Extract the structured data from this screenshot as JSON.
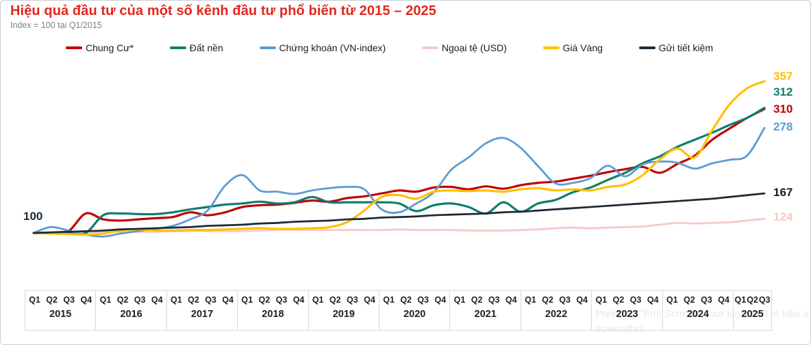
{
  "header": {
    "title": "Hiệu quả đầu tư của một số kênh đầu tư phổ biến từ 2015 – 2025",
    "subtitle": "Index = 100 tại Q1/2015",
    "title_color": "#e2261c"
  },
  "watermark": {
    "line1": "Press the \"Prnt Scrn\" on your keyboard to take a",
    "line2": "screenshot"
  },
  "chart_data": {
    "type": "line",
    "title": "Hiệu quả đầu tư của một số kênh đầu tư phổ biến từ 2015 – 2025",
    "subtitle": "Index = 100 tại Q1/2015",
    "baseline_label": "100",
    "baseline_value": 100,
    "ylim": [
      85,
      370
    ],
    "grid": false,
    "legend_position": "top",
    "x_axis": {
      "years": [
        {
          "label": "2015",
          "quarters": [
            "Q1",
            "Q2",
            "Q3",
            "Q4"
          ]
        },
        {
          "label": "2016",
          "quarters": [
            "Q1",
            "Q2",
            "Q3",
            "Q4"
          ]
        },
        {
          "label": "2017",
          "quarters": [
            "Q1",
            "Q2",
            "Q3",
            "Q4"
          ]
        },
        {
          "label": "2018",
          "quarters": [
            "Q1",
            "Q2",
            "Q3",
            "Q4"
          ]
        },
        {
          "label": "2019",
          "quarters": [
            "Q1",
            "Q2",
            "Q3",
            "Q4"
          ]
        },
        {
          "label": "2020",
          "quarters": [
            "Q1",
            "Q2",
            "Q3",
            "Q4"
          ]
        },
        {
          "label": "2021",
          "quarters": [
            "Q1",
            "Q2",
            "Q3",
            "Q4"
          ]
        },
        {
          "label": "2022",
          "quarters": [
            "Q1",
            "Q2",
            "Q3",
            "Q4"
          ]
        },
        {
          "label": "2023",
          "quarters": [
            "Q1",
            "Q2",
            "Q3",
            "Q4"
          ]
        },
        {
          "label": "2024",
          "quarters": [
            "Q1",
            "Q2",
            "Q3",
            "Q4"
          ]
        },
        {
          "label": "2025",
          "quarters": [
            "Q1",
            "Q2",
            "Q3"
          ]
        }
      ]
    },
    "series": [
      {
        "name": "Chung Cư*",
        "color": "#c00000",
        "end_label": "310",
        "values": [
          100,
          100,
          103,
          133,
          123,
          121,
          123,
          125,
          127,
          135,
          130,
          135,
          144,
          147,
          148,
          151,
          155,
          153,
          159,
          162,
          167,
          172,
          170,
          177,
          178,
          174,
          179,
          175,
          181,
          185,
          187,
          192,
          197,
          203,
          208,
          212,
          202,
          217,
          231,
          258,
          277,
          295,
          310
        ]
      },
      {
        "name": "Đất nền",
        "color": "#0f7c6c",
        "end_label": "312",
        "values": [
          100,
          100,
          100,
          100,
          130,
          133,
          132,
          132,
          135,
          140,
          144,
          148,
          150,
          153,
          150,
          152,
          161,
          152,
          152,
          152,
          152,
          150,
          137,
          147,
          150,
          144,
          133,
          152,
          136,
          150,
          156,
          169,
          177,
          190,
          202,
          218,
          230,
          246,
          258,
          270,
          283,
          295,
          312
        ]
      },
      {
        "name": "Chứng khoán (VN-index)",
        "color": "#5b9bd5",
        "end_label": "278",
        "values": [
          100,
          110,
          104,
          97,
          94,
          99,
          103,
          107,
          112,
          123,
          138,
          180,
          198,
          172,
          170,
          166,
          172,
          176,
          178,
          174,
          140,
          135,
          150,
          169,
          207,
          228,
          252,
          261,
          244,
          213,
          184,
          185,
          193,
          214,
          196,
          216,
          221,
          219,
          209,
          218,
          224,
          231,
          278
        ]
      },
      {
        "name": "Ngoại tệ (USD)",
        "color": "#f8c9c5",
        "end_label": "124",
        "values": [
          100,
          100,
          101,
          101,
          102,
          102,
          102,
          102,
          103,
          103,
          103,
          103,
          103,
          104,
          105,
          105,
          105,
          105,
          105,
          105,
          105,
          106,
          105,
          105,
          105,
          104,
          104,
          104,
          105,
          106,
          108,
          109,
          108,
          109,
          110,
          111,
          114,
          117,
          116,
          117,
          118,
          121,
          124
        ]
      },
      {
        "name": "Giá Vàng",
        "color": "#ffc000",
        "end_label": "357",
        "values": [
          100,
          99,
          98,
          97,
          99,
          104,
          106,
          104,
          104,
          105,
          105,
          106,
          107,
          108,
          107,
          107,
          108,
          110,
          118,
          138,
          161,
          164,
          158,
          170,
          172,
          171,
          172,
          170,
          174,
          176,
          172,
          174,
          172,
          178,
          182,
          198,
          225,
          243,
          228,
          274,
          318,
          345,
          357
        ]
      },
      {
        "name": "Gửi tiết kiệm",
        "color": "#1c2b39",
        "end_label": "167",
        "end_label_color": "#1a1a1a",
        "values": [
          100,
          101,
          102,
          103,
          104,
          106,
          107,
          108,
          109,
          110,
          112,
          113,
          114,
          116,
          117,
          119,
          120,
          121,
          123,
          124,
          126,
          127,
          128,
          130,
          131,
          132,
          133,
          135,
          136,
          138,
          140,
          142,
          144,
          146,
          148,
          150,
          152,
          154,
          156,
          158,
          161,
          164,
          167
        ]
      }
    ]
  }
}
